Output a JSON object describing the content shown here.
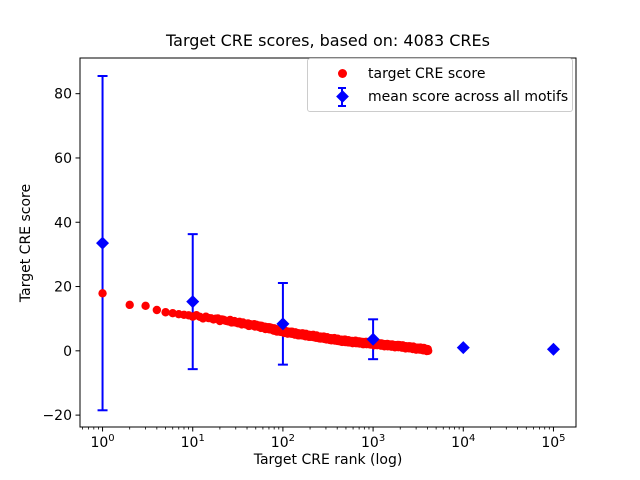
{
  "chart_data": {
    "type": "scatter",
    "title": "Target CRE scores, based on: 4083 CREs",
    "xlabel": "Target CRE rank (log)",
    "ylabel": "Target CRE score",
    "x_scale": "log",
    "xlim_log10": [
      -0.25,
      5.25
    ],
    "ylim": [
      -23.7,
      91.1
    ],
    "x_tick_exponents": [
      0,
      1,
      2,
      3,
      4,
      5
    ],
    "y_ticks": [
      -20,
      0,
      20,
      40,
      60,
      80
    ],
    "grid": false,
    "legend_position": "upper right",
    "colors": {
      "target": "#ff0000",
      "mean": "#0000ff",
      "axes": "#000000",
      "legend_edge": "#cccccc"
    },
    "series": [
      {
        "name": "target CRE score",
        "type": "scatter",
        "color": "#ff0000",
        "marker": "circle",
        "n_points": 4083,
        "note": "4083 red dots forming a decreasing band; values log-interpolated between anchors below",
        "anchors": {
          "ranks": [
            1,
            2,
            3,
            4,
            5,
            6,
            7,
            8,
            10,
            15,
            20,
            30,
            50,
            70,
            100,
            150,
            200,
            300,
            500,
            700,
            1000,
            1500,
            2000,
            3000,
            4083
          ],
          "scores": [
            17.9,
            14.3,
            14.0,
            12.7,
            12.0,
            11.7,
            11.4,
            11.2,
            10.9,
            10.2,
            9.7,
            8.9,
            7.8,
            7.0,
            6.0,
            5.2,
            4.7,
            3.9,
            3.0,
            2.6,
            2.2,
            1.7,
            1.4,
            0.8,
            0.3
          ]
        }
      },
      {
        "name": "mean score across all motifs",
        "type": "scatter_errorbar",
        "color": "#0000ff",
        "marker": "diamond",
        "ranks": [
          1,
          10,
          100,
          1000,
          10000,
          100000
        ],
        "means": [
          33.5,
          15.3,
          8.4,
          3.6,
          1.0,
          0.5
        ],
        "yerr": [
          52,
          21,
          12.7,
          6.2,
          0,
          0
        ]
      }
    ],
    "legend": [
      {
        "label": "target CRE score",
        "marker": "circle",
        "color": "#ff0000"
      },
      {
        "label": "mean score across all motifs",
        "marker": "diamond-errorbar",
        "color": "#0000ff"
      }
    ]
  }
}
